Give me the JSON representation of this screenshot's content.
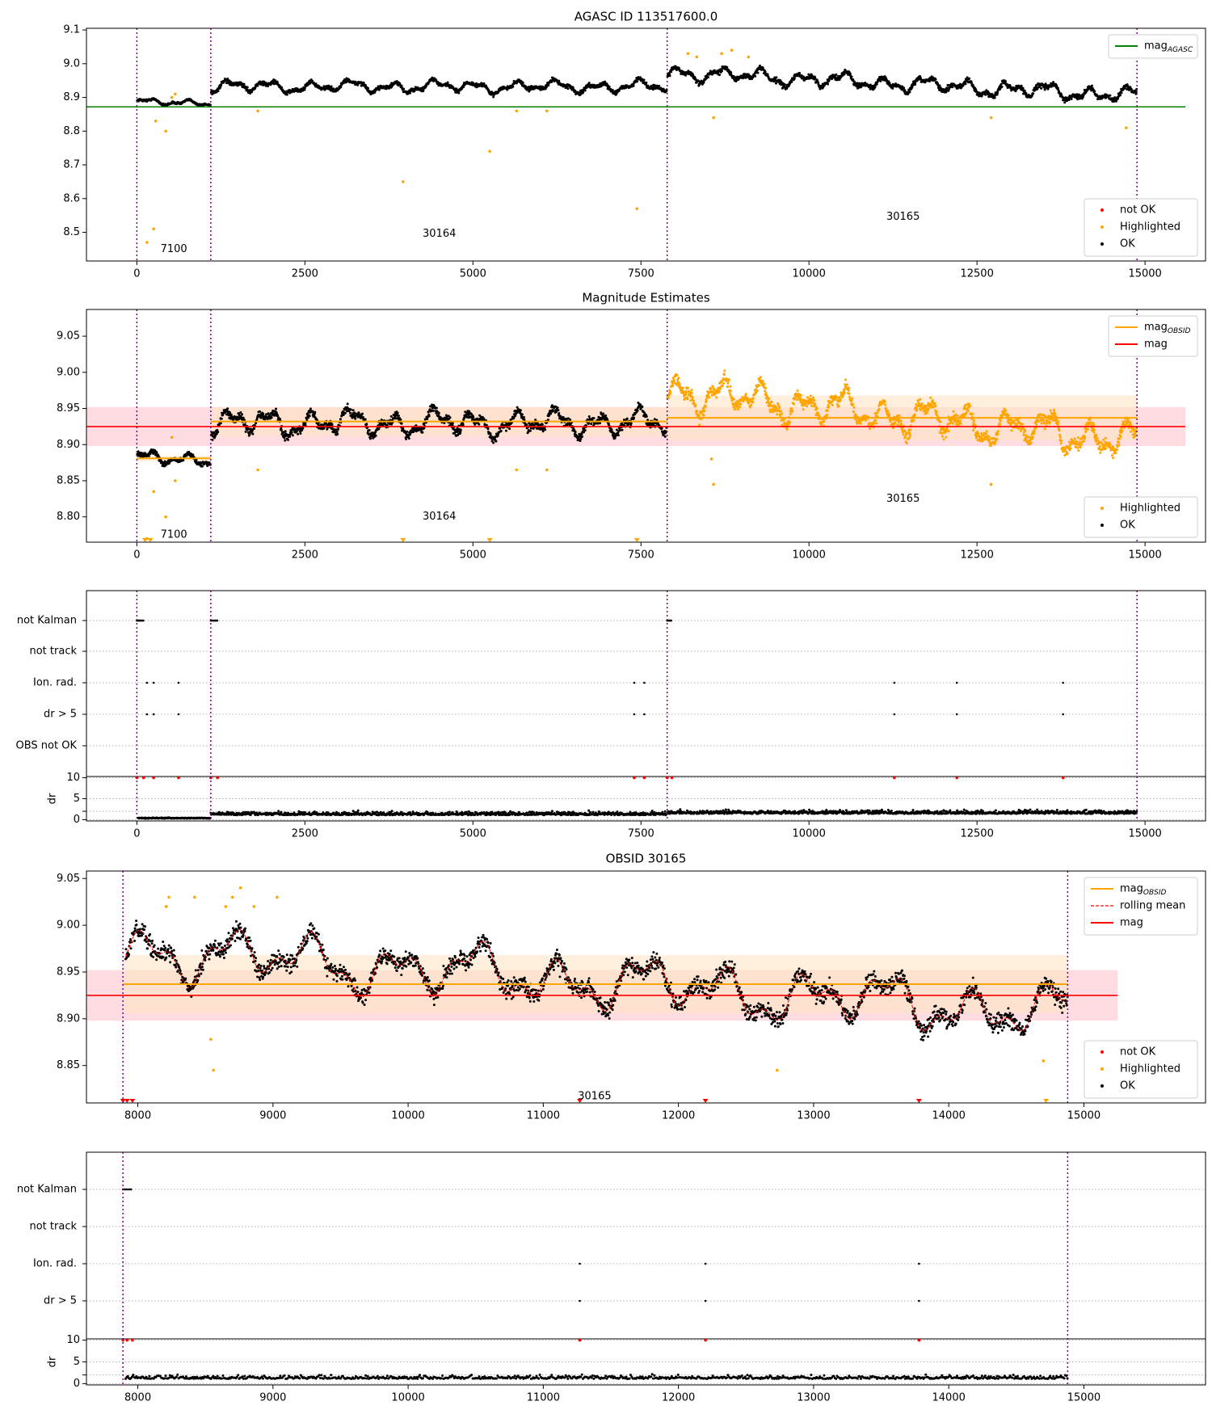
{
  "chart_data": [
    {
      "id": "agasc",
      "type": "scatter",
      "title": "AGASC ID 113517600.0",
      "xlim": [
        -750,
        15900
      ],
      "ylim": [
        8.415,
        9.105
      ],
      "xticks": [
        0,
        2500,
        5000,
        7500,
        10000,
        12500,
        15000
      ],
      "yticks": [
        8.5,
        8.6,
        8.7,
        8.8,
        8.9,
        9.0,
        9.1
      ],
      "ytick_labels": [
        "8.5",
        "8.6",
        "8.7",
        "8.8",
        "8.9",
        "9.0",
        "9.1"
      ],
      "obsid_bounds": [
        0,
        1100,
        7890,
        14880
      ],
      "obsid_labels": [
        {
          "text": "7100",
          "x": 550,
          "y": 8.45
        },
        {
          "text": "30164",
          "x": 4500,
          "y": 8.495
        },
        {
          "text": "30165",
          "x": 11400,
          "y": 8.545
        }
      ],
      "segments": [
        {
          "x": [
            0,
            1100
          ],
          "base": 8.885,
          "amp": 0.012
        },
        {
          "x": [
            1100,
            7890
          ],
          "base": 8.932,
          "amp": 0.022
        },
        {
          "x": [
            7890,
            14880
          ],
          "base": 8.925,
          "amp": 0.028,
          "trend": [
            8.975,
            8.905
          ]
        }
      ],
      "reference_lines": [
        {
          "name": "mag_AGASC",
          "y": 8.872,
          "x": [
            -750,
            15600
          ],
          "color": "#008000"
        }
      ],
      "highlighted_points": [
        [
          150,
          8.47
        ],
        [
          250,
          8.51
        ],
        [
          280,
          8.83
        ],
        [
          430,
          8.8
        ],
        [
          520,
          8.9
        ],
        [
          570,
          8.91
        ],
        [
          1800,
          8.86
        ],
        [
          3960,
          8.65
        ],
        [
          5250,
          8.74
        ],
        [
          5650,
          8.86
        ],
        [
          6100,
          8.86
        ],
        [
          7440,
          8.57
        ],
        [
          8200,
          9.03
        ],
        [
          8330,
          9.02
        ],
        [
          8580,
          8.84
        ],
        [
          8700,
          9.03
        ],
        [
          8850,
          9.04
        ],
        [
          9100,
          9.02
        ],
        [
          12710,
          8.84
        ],
        [
          14720,
          8.81
        ]
      ],
      "legend": {
        "position": "top-right",
        "entries": [
          {
            "label": "mag",
            "sub": "AGASC",
            "style": "line",
            "color": "#008000"
          }
        ]
      },
      "legend2": {
        "position": "bottom-right",
        "entries": [
          {
            "label": "not OK",
            "color": "#ff0000"
          },
          {
            "label": "Highlighted",
            "color": "#ffa500"
          },
          {
            "label": "OK",
            "color": "#000000"
          }
        ]
      }
    },
    {
      "id": "estimates",
      "type": "scatter",
      "title": "Magnitude Estimates",
      "xlim": [
        -750,
        15900
      ],
      "ylim": [
        8.765,
        9.087
      ],
      "xticks": [
        0,
        2500,
        5000,
        7500,
        10000,
        12500,
        15000
      ],
      "yticks": [
        8.8,
        8.85,
        8.9,
        8.95,
        9.0,
        9.05
      ],
      "ytick_labels": [
        "8.80",
        "8.85",
        "8.90",
        "8.95",
        "9.00",
        "9.05"
      ],
      "obsid_bounds": [
        0,
        1100,
        7890,
        14880
      ],
      "obsid_labels": [
        {
          "text": "7100",
          "x": 550,
          "y": 8.775
        },
        {
          "text": "30164",
          "x": 4500,
          "y": 8.8
        },
        {
          "text": "30165",
          "x": 11400,
          "y": 8.825
        }
      ],
      "segments": [
        {
          "x": [
            0,
            1100
          ],
          "base": 8.88,
          "amp": 0.012
        },
        {
          "x": [
            1100,
            7890
          ],
          "base": 8.93,
          "amp": 0.022
        },
        {
          "x": [
            7890,
            14880
          ],
          "base": 8.935,
          "amp": 0.03,
          "trend": [
            8.975,
            8.905
          ],
          "highlight_all": true
        }
      ],
      "mag": {
        "y": 8.925,
        "band": [
          8.898,
          8.952
        ],
        "x": [
          -750,
          15600
        ]
      },
      "mag_obsid": [
        {
          "x": [
            0,
            1100
          ],
          "y": 8.881,
          "band": [
            8.877,
            8.885
          ]
        },
        {
          "x": [
            1100,
            7890
          ],
          "y": 8.932,
          "band": [
            8.912,
            8.952
          ]
        },
        {
          "x": [
            7890,
            14880
          ],
          "y": 8.937,
          "band": [
            8.906,
            8.968
          ]
        }
      ],
      "off_scale_markers": [
        120,
        200,
        3960,
        5250,
        7440
      ],
      "highlighted_points": [
        [
          150,
          8.77
        ],
        [
          250,
          8.835
        ],
        [
          430,
          8.8
        ],
        [
          520,
          8.91
        ],
        [
          570,
          8.85
        ],
        [
          1800,
          8.865
        ],
        [
          5650,
          8.865
        ],
        [
          6100,
          8.865
        ],
        [
          8580,
          8.845
        ],
        [
          8550,
          8.88
        ],
        [
          12710,
          8.845
        ],
        [
          14720,
          8.815
        ]
      ],
      "legend": {
        "position": "top-right",
        "entries": [
          {
            "label": "mag",
            "sub": "OBSID",
            "style": "line",
            "color": "#ffa500"
          },
          {
            "label": "mag",
            "style": "line",
            "color": "#ff0000"
          }
        ]
      },
      "legend2": {
        "position": "bottom-right",
        "entries": [
          {
            "label": "Highlighted",
            "color": "#ffa500"
          },
          {
            "label": "OK",
            "color": "#000000"
          }
        ]
      }
    },
    {
      "id": "flags",
      "type": "scatter",
      "xlim": [
        -750,
        15900
      ],
      "xticks": [
        0,
        2500,
        5000,
        7500,
        10000,
        12500,
        15000
      ],
      "categories": [
        "not Kalman",
        "not track",
        "Ion. rad.",
        "dr > 5",
        "OBS not OK"
      ],
      "obsid_bounds": [
        0,
        1100,
        7890,
        14880
      ],
      "flag_points": {
        "not Kalman": [
          [
            0,
            100
          ],
          [
            1100,
            1200
          ],
          [
            7890,
            7960
          ]
        ],
        "Ion. rad.": [
          150,
          250,
          620,
          7400,
          7550,
          11270,
          12200,
          13780
        ],
        "dr > 5": [
          150,
          250,
          620,
          7400,
          7550,
          11270,
          12200,
          13780
        ]
      },
      "dr": {
        "ylabel": "dr",
        "yticks": [
          0,
          2,
          5,
          10
        ],
        "ytick_labels": [
          "0",
          "",
          "5",
          "10"
        ],
        "ylim": [
          -0.3,
          10.3
        ],
        "red_markers": [
          0,
          100,
          250,
          620,
          1100,
          1200,
          7400,
          7550,
          7890,
          7960,
          11270,
          12200,
          13780
        ]
      }
    },
    {
      "id": "obsid30165",
      "type": "scatter",
      "title": "OBSID 30165",
      "xlim": [
        7620,
        15900
      ],
      "ylim": [
        8.81,
        9.058
      ],
      "xticks": [
        8000,
        9000,
        10000,
        11000,
        12000,
        13000,
        14000,
        15000
      ],
      "yticks": [
        8.85,
        8.9,
        8.95,
        9.0,
        9.05
      ],
      "ytick_labels": [
        "8.85",
        "8.90",
        "8.95",
        "9.00",
        "9.05"
      ],
      "obsid_bounds": [
        7890,
        14880
      ],
      "obsid_labels": [
        {
          "text": "30165",
          "x": 11380,
          "y": 8.817
        }
      ],
      "segment": {
        "x": [
          7890,
          14880
        ],
        "trend": [
          8.975,
          8.905
        ],
        "amp": 0.035
      },
      "mag": {
        "y": 8.925,
        "band": [
          8.898,
          8.952
        ],
        "x": [
          7620,
          15250
        ]
      },
      "mag_obsid": {
        "x": [
          7890,
          14880
        ],
        "y": 8.937,
        "band": [
          8.906,
          8.968
        ]
      },
      "off_scale_markers": [
        {
          "x": 7890,
          "color": "#ff0000"
        },
        {
          "x": 7920,
          "color": "#ff0000"
        },
        {
          "x": 7960,
          "color": "#ff0000"
        },
        {
          "x": 11270,
          "color": "#ff0000"
        },
        {
          "x": 12200,
          "color": "#ff0000"
        },
        {
          "x": 13780,
          "color": "#ff0000"
        },
        {
          "x": 14720,
          "color": "#ffa500"
        }
      ],
      "highlighted_points": [
        [
          8210,
          9.02
        ],
        [
          8230,
          9.03
        ],
        [
          8420,
          9.03
        ],
        [
          8650,
          9.02
        ],
        [
          8700,
          9.03
        ],
        [
          8760,
          9.04
        ],
        [
          8860,
          9.02
        ],
        [
          9030,
          9.03
        ],
        [
          8560,
          8.845
        ],
        [
          8540,
          8.878
        ],
        [
          12730,
          8.845
        ],
        [
          14700,
          8.855
        ]
      ],
      "legend": {
        "position": "top-right",
        "entries": [
          {
            "label": "mag",
            "sub": "OBSID",
            "style": "line",
            "color": "#ffa500"
          },
          {
            "label": "rolling mean",
            "style": "dash",
            "color": "#ff0000"
          },
          {
            "label": "mag",
            "style": "line",
            "color": "#ff0000"
          }
        ]
      },
      "legend2": {
        "position": "bottom-right",
        "entries": [
          {
            "label": "not OK",
            "color": "#ff0000"
          },
          {
            "label": "Highlighted",
            "color": "#ffa500"
          },
          {
            "label": "OK",
            "color": "#000000"
          }
        ]
      }
    },
    {
      "id": "flags30165",
      "type": "scatter",
      "xlim": [
        7620,
        15900
      ],
      "xticks": [
        8000,
        9000,
        10000,
        11000,
        12000,
        13000,
        14000,
        15000
      ],
      "categories": [
        "not Kalman",
        "not track",
        "Ion. rad.",
        "dr > 5"
      ],
      "obsid_bounds": [
        7890,
        14880
      ],
      "flag_points": {
        "not Kalman": [
          [
            7890,
            7960
          ]
        ],
        "Ion. rad.": [
          11270,
          12200,
          13780
        ],
        "dr > 5": [
          11270,
          12200,
          13780
        ]
      },
      "dr": {
        "ylabel": "dr",
        "yticks": [
          0,
          2,
          5,
          10
        ],
        "ytick_labels": [
          "0",
          "",
          "5",
          "10"
        ],
        "ylim": [
          -0.3,
          10.3
        ],
        "red_markers": [
          7890,
          7920,
          7960,
          11270,
          12200,
          13780
        ]
      }
    }
  ],
  "colors": {
    "ok": "#000000",
    "highlighted": "#ffa500",
    "not_ok": "#ff0000",
    "agasc": "#008000",
    "obsid_line": "#800080",
    "mag_band": "#ffc0cb",
    "mag_obsid_band": "#ffe4c4"
  }
}
